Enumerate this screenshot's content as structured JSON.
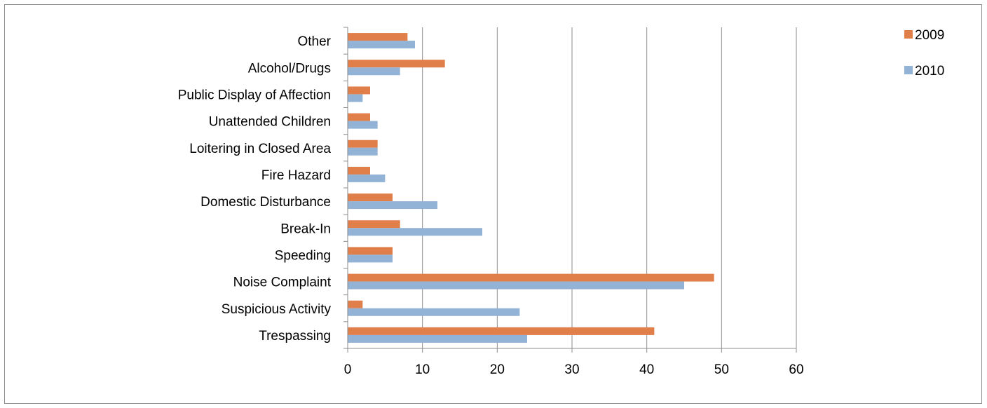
{
  "chart_data": {
    "type": "bar",
    "orientation": "horizontal",
    "categories": [
      "Other",
      "Alcohol/Drugs",
      "Public Display of Affection",
      "Unattended Children",
      "Loitering in Closed Area",
      "Fire Hazard",
      "Domestic Disturbance",
      "Break-In",
      "Speeding",
      "Noise Complaint",
      "Suspicious Activity",
      "Trespassing"
    ],
    "series": [
      {
        "name": "2009",
        "color": "#e07f4a",
        "values": [
          8,
          13,
          3,
          3,
          4,
          3,
          6,
          7,
          6,
          49,
          2,
          41
        ]
      },
      {
        "name": "2010",
        "color": "#93b3d6",
        "values": [
          9,
          7,
          2,
          4,
          4,
          5,
          12,
          18,
          6,
          45,
          23,
          24
        ]
      }
    ],
    "xlim": [
      0,
      60
    ],
    "xticks": [
      "0",
      "10",
      "20",
      "30",
      "40",
      "50",
      "60"
    ],
    "grid": "vertical",
    "legend_position": "top-right"
  }
}
